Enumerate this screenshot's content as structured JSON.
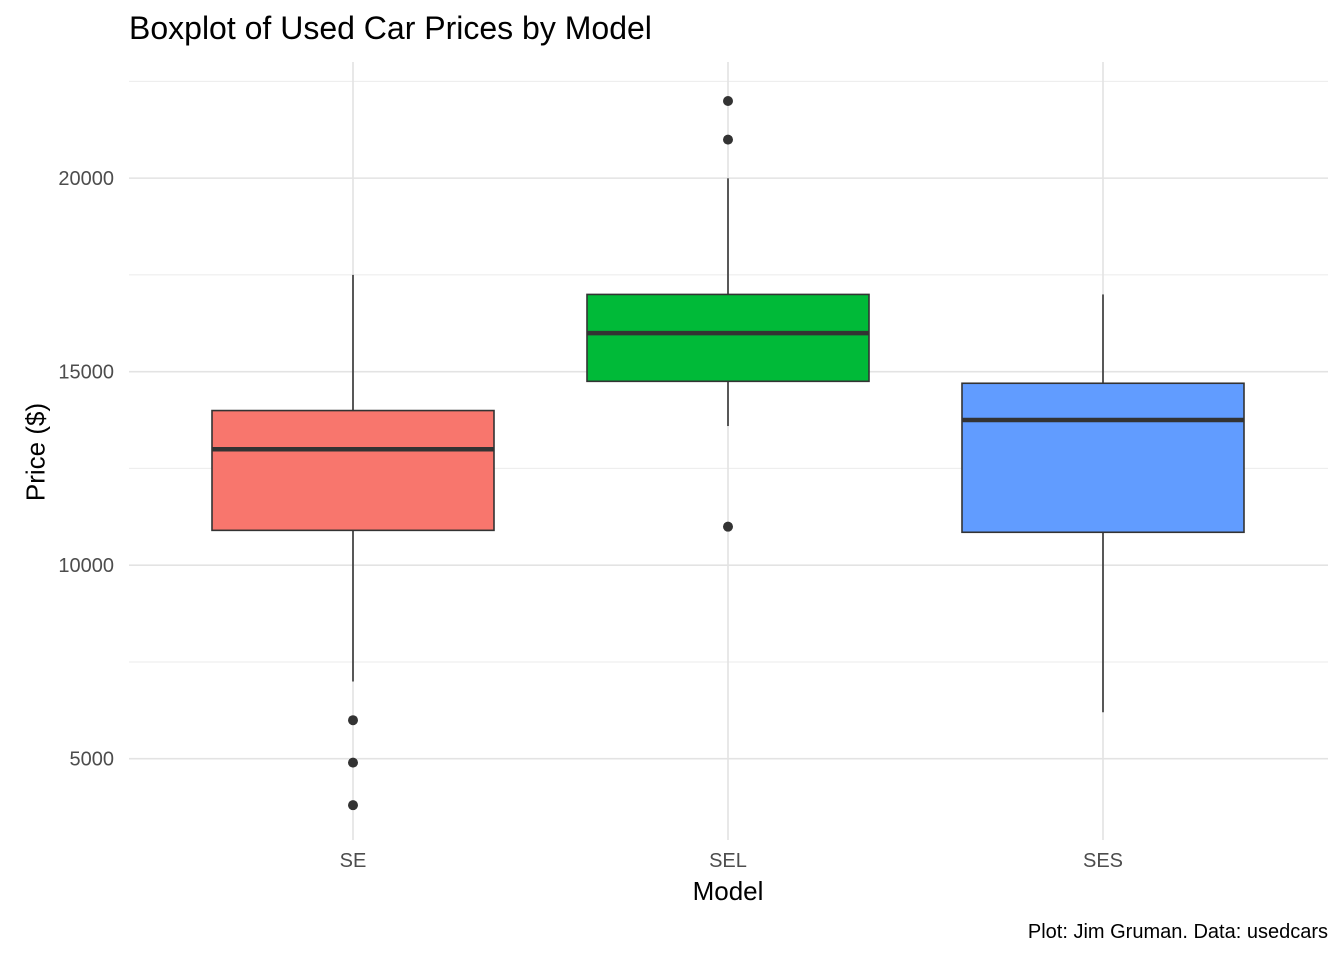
{
  "chart_data": {
    "type": "boxplot",
    "title": "Boxplot of Used Car Prices by Model",
    "xlabel": "Model",
    "ylabel": "Price ($)",
    "caption": "Plot: Jim Gruman. Data: usedcars",
    "ylim": [
      2900,
      23000
    ],
    "yticks": [
      5000,
      10000,
      15000,
      20000
    ],
    "ytick_labels": [
      "5000",
      "10000",
      "15000",
      "20000"
    ],
    "grid": true,
    "legend": "none",
    "categories": [
      "SE",
      "SEL",
      "SES"
    ],
    "boxes": [
      {
        "category": "SE",
        "color": "#F8766D",
        "whisker_low": 6995,
        "q1": 10900,
        "median": 12995,
        "q3": 13995,
        "whisker_high": 17500,
        "outliers": [
          5995,
          4899,
          3800
        ]
      },
      {
        "category": "SEL",
        "color": "#00BA38",
        "whisker_low": 13595,
        "q1": 14750,
        "median": 15995,
        "q3": 16995,
        "whisker_high": 19995,
        "outliers": [
          21992,
          20995,
          10995
        ]
      },
      {
        "category": "SES",
        "color": "#619CFF",
        "whisker_low": 6200,
        "q1": 10850,
        "median": 13750,
        "q3": 14700,
        "whisker_high": 16995,
        "outliers": []
      }
    ]
  }
}
